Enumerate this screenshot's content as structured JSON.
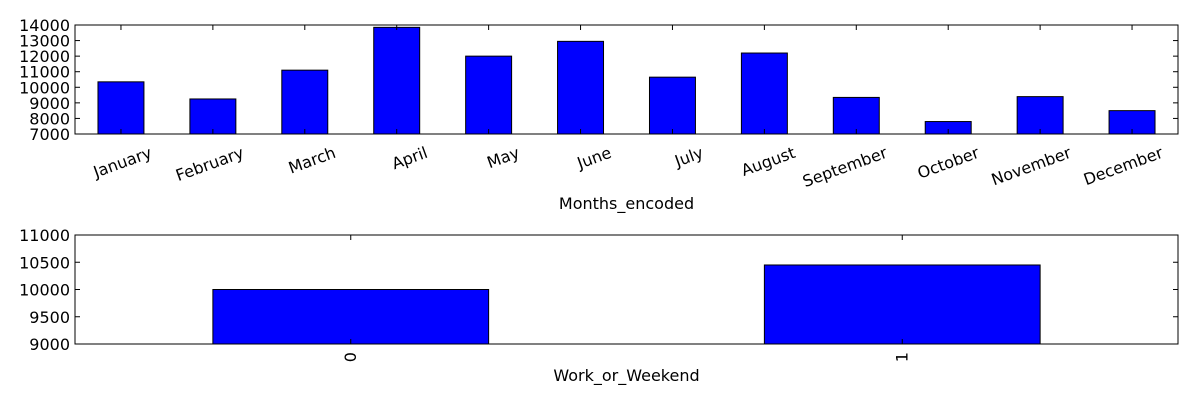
{
  "chart_data": [
    {
      "type": "bar",
      "categories": [
        "January",
        "February",
        "March",
        "April",
        "May",
        "June",
        "July",
        "August",
        "September",
        "October",
        "November",
        "December"
      ],
      "values": [
        10350,
        9250,
        11100,
        13850,
        12000,
        12950,
        10650,
        12200,
        9350,
        7800,
        9400,
        8500
      ],
      "xlabel": "Months_encoded",
      "ylabel": "",
      "ylim": [
        7000,
        14000
      ],
      "yticks": [
        7000,
        8000,
        9000,
        10000,
        11000,
        12000,
        13000,
        14000
      ],
      "bar_color": "#0000ff",
      "grid": false,
      "x_tick_rotation_deg": -20
    },
    {
      "type": "bar",
      "categories": [
        "0",
        "1"
      ],
      "values": [
        10000,
        10450
      ],
      "xlabel": "Work_or_Weekend",
      "ylabel": "",
      "ylim": [
        9000,
        11000
      ],
      "yticks": [
        9000,
        9500,
        10000,
        10500,
        11000
      ],
      "bar_color": "#0000ff",
      "grid": false,
      "x_tick_rotation_deg": -90
    }
  ]
}
